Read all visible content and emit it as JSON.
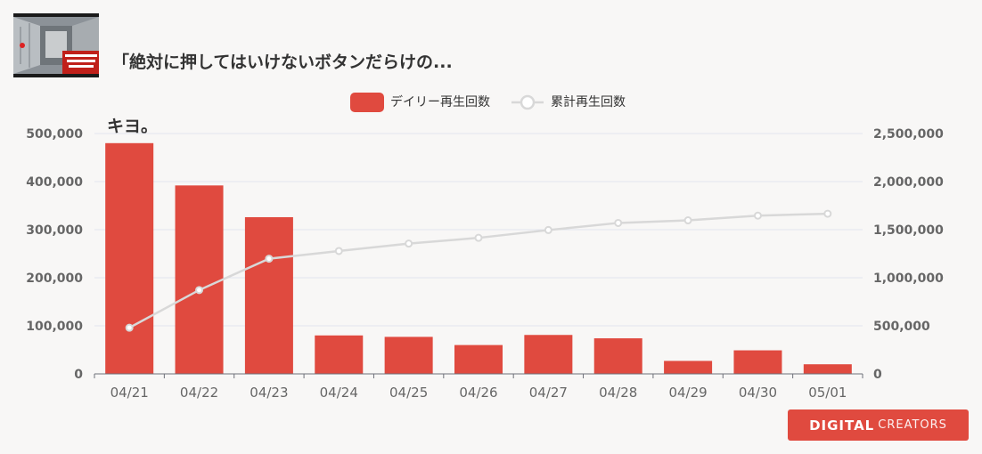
{
  "header": {
    "title_line1": "「絶対に押してはいけないボタンだらけの...",
    "title_line2": "キヨ。"
  },
  "logo": {
    "part1": "DIGITAL",
    "part2": "CREATORS"
  },
  "colors": {
    "bar": "#e04a3f",
    "line": "#d8d8d8",
    "background": "#f8f7f6"
  },
  "chart_data": {
    "type": "bar",
    "categories": [
      "04/21",
      "04/22",
      "04/23",
      "04/24",
      "04/25",
      "04/26",
      "04/27",
      "04/28",
      "04/29",
      "04/30",
      "05/01"
    ],
    "series": [
      {
        "name": "デイリー再生回数",
        "type": "bar",
        "axis": "left",
        "values": [
          480000,
          392000,
          326000,
          80000,
          77000,
          60000,
          81000,
          74000,
          27000,
          49000,
          20000
        ]
      },
      {
        "name": "累計再生回数",
        "type": "line",
        "axis": "right",
        "values": [
          480000,
          872000,
          1198000,
          1278000,
          1355000,
          1415000,
          1496000,
          1570000,
          1597000,
          1646000,
          1666000
        ]
      }
    ],
    "y_left": {
      "min": 0,
      "max": 500000,
      "ticks": [
        "0",
        "100,000",
        "200,000",
        "300,000",
        "400,000",
        "500,000"
      ]
    },
    "y_right": {
      "min": 0,
      "max": 2500000,
      "ticks": [
        "0",
        "500,000",
        "1,000,000",
        "1,500,000",
        "2,000,000",
        "2,500,000"
      ]
    },
    "legend_position": "top-center",
    "grid": true
  }
}
